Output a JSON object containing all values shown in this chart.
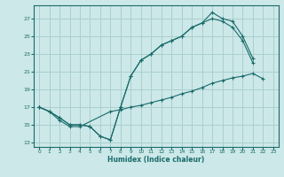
{
  "bg_color": "#cce8e8",
  "grid_color": "#aacfcf",
  "line_color": "#1a6b6b",
  "xlabel": "Humidex (Indice chaleur)",
  "xlim": [
    -0.5,
    23.5
  ],
  "ylim": [
    12.5,
    28.5
  ],
  "yticks": [
    13,
    15,
    17,
    19,
    21,
    23,
    25,
    27
  ],
  "xticks": [
    0,
    1,
    2,
    3,
    4,
    5,
    6,
    7,
    8,
    9,
    10,
    11,
    12,
    13,
    14,
    15,
    16,
    17,
    18,
    19,
    20,
    21,
    22,
    23
  ],
  "curve1_x": [
    0,
    1,
    2,
    3,
    4,
    5,
    6,
    7,
    8,
    9,
    10,
    11,
    12,
    13,
    14,
    15,
    16,
    17,
    18,
    19,
    20,
    21
  ],
  "curve1_y": [
    17.0,
    16.5,
    15.8,
    15.0,
    15.0,
    14.8,
    13.7,
    13.3,
    17.0,
    20.5,
    22.3,
    23.0,
    24.0,
    24.5,
    25.0,
    26.0,
    26.5,
    27.7,
    27.0,
    26.7,
    25.0,
    22.5
  ],
  "curve2_x": [
    0,
    1,
    2,
    3,
    4,
    5,
    6,
    7,
    8,
    9,
    10,
    11,
    12,
    13,
    14,
    15,
    16,
    17,
    18,
    19,
    20,
    21
  ],
  "curve2_y": [
    17.0,
    16.5,
    15.8,
    15.0,
    15.0,
    14.8,
    13.7,
    13.3,
    17.0,
    20.5,
    22.3,
    23.0,
    24.0,
    24.5,
    25.0,
    26.0,
    26.5,
    27.0,
    26.7,
    26.0,
    24.5,
    22.0
  ],
  "curve3_x": [
    0,
    1,
    2,
    3,
    4,
    7,
    8,
    9,
    10,
    11,
    12,
    13,
    14,
    15,
    16,
    17,
    18,
    19,
    20,
    21,
    22
  ],
  "curve3_y": [
    17.0,
    16.5,
    15.5,
    14.8,
    14.8,
    16.5,
    16.7,
    17.0,
    17.2,
    17.5,
    17.8,
    18.1,
    18.5,
    18.8,
    19.2,
    19.7,
    20.0,
    20.3,
    20.5,
    20.8,
    20.2
  ]
}
